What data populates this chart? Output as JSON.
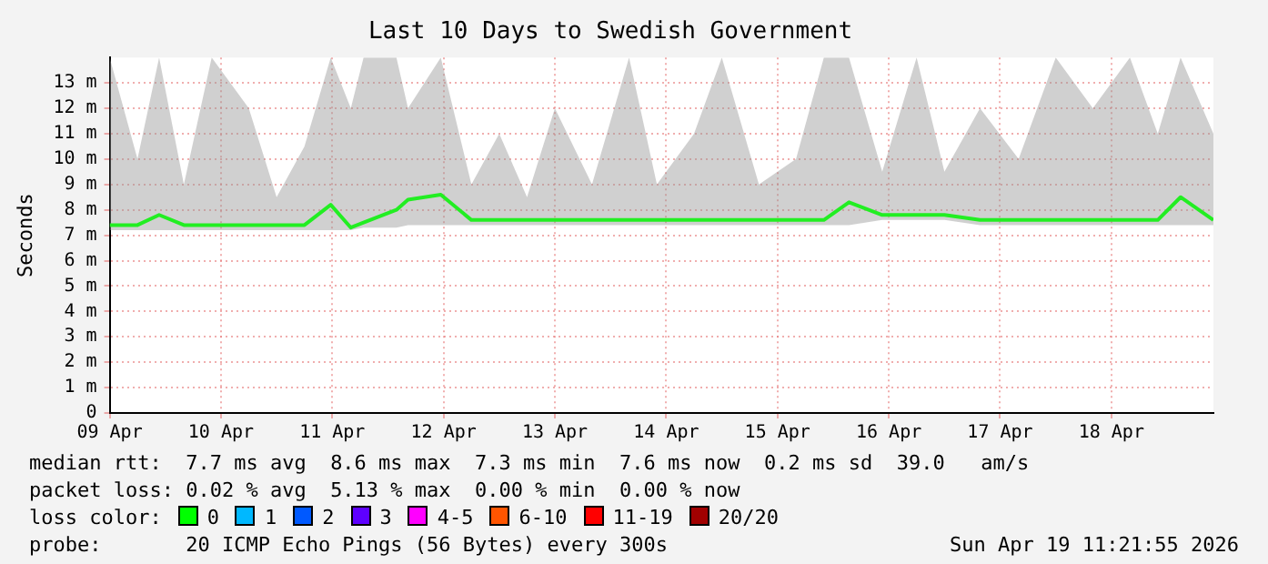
{
  "chart_data": {
    "type": "line",
    "title": "Last 10 Days to Swedish Government",
    "ylabel": "Seconds",
    "x": [
      "2026-04-09T00:00",
      "2026-04-09T06:00",
      "2026-04-09T10:40",
      "2026-04-09T16:00",
      "2026-04-09T22:00",
      "2026-04-10T06:00",
      "2026-04-10T12:00",
      "2026-04-10T18:00",
      "2026-04-10T23:40",
      "2026-04-11T04:00",
      "2026-04-11T06:45",
      "2026-04-11T13:50",
      "2026-04-11T16:20",
      "2026-04-11T23:24",
      "2026-04-12T06:00",
      "2026-04-12T12:00",
      "2026-04-12T18:00",
      "2026-04-13T00:00",
      "2026-04-13T08:00",
      "2026-04-13T16:00",
      "2026-04-13T22:00",
      "2026-04-14T06:00",
      "2026-04-14T12:00",
      "2026-04-14T20:00",
      "2026-04-15T04:00",
      "2026-04-15T10:00",
      "2026-04-15T15:25",
      "2026-04-15T22:35",
      "2026-04-16T06:00",
      "2026-04-16T12:00",
      "2026-04-16T19:40",
      "2026-04-17T04:00",
      "2026-04-17T12:00",
      "2026-04-17T20:00",
      "2026-04-18T04:00",
      "2026-04-18T10:00",
      "2026-04-18T14:55",
      "2026-04-18T22:00"
    ],
    "series": [
      {
        "color": "#22ee22",
        "values": [
          7.4,
          7.4,
          7.8,
          7.4,
          7.4,
          7.4,
          7.4,
          7.4,
          8.2,
          7.3,
          7.5,
          8.0,
          8.4,
          8.6,
          7.6,
          7.6,
          7.6,
          7.6,
          7.6,
          7.6,
          7.6,
          7.6,
          7.6,
          7.6,
          7.6,
          7.6,
          8.3,
          7.8,
          7.8,
          7.8,
          7.6,
          7.6,
          7.6,
          7.6,
          7.6,
          7.6,
          8.5,
          7.6
        ],
        "lower": [
          7.2,
          7.2,
          7.2,
          7.2,
          7.2,
          7.2,
          7.2,
          7.2,
          7.2,
          7.2,
          7.3,
          7.3,
          7.4,
          7.4,
          7.4,
          7.4,
          7.4,
          7.4,
          7.4,
          7.4,
          7.4,
          7.4,
          7.4,
          7.4,
          7.4,
          7.4,
          7.4,
          7.6,
          7.6,
          7.6,
          7.4,
          7.4,
          7.4,
          7.4,
          7.4,
          7.4,
          7.4,
          7.4
        ],
        "upper": [
          14,
          10,
          14,
          9,
          14,
          12,
          8.5,
          10.5,
          14,
          12,
          14,
          14,
          12,
          14,
          9,
          11,
          8.5,
          12,
          9,
          14,
          9,
          11,
          14,
          9,
          10,
          14,
          14,
          9.5,
          14,
          9.5,
          12,
          10,
          14,
          12,
          14,
          11,
          14,
          11
        ]
      }
    ],
    "xlim": [
      "2026-04-09T00:00",
      "2026-04-18T22:00"
    ],
    "xticks": [
      {
        "value": "2026-04-09",
        "label": "09 Apr"
      },
      {
        "value": "2026-04-10",
        "label": "10 Apr"
      },
      {
        "value": "2026-04-11",
        "label": "11 Apr"
      },
      {
        "value": "2026-04-12",
        "label": "12 Apr"
      },
      {
        "value": "2026-04-13",
        "label": "13 Apr"
      },
      {
        "value": "2026-04-14",
        "label": "14 Apr"
      },
      {
        "value": "2026-04-15",
        "label": "15 Apr"
      },
      {
        "value": "2026-04-16",
        "label": "16 Apr"
      },
      {
        "value": "2026-04-17",
        "label": "17 Apr"
      },
      {
        "value": "2026-04-18",
        "label": "18 Apr"
      }
    ],
    "ylim": [
      0,
      14
    ],
    "yticks": [
      0,
      {
        "value": 1,
        "label": "1 m"
      },
      {
        "value": 2,
        "label": "2 m"
      },
      {
        "value": 3,
        "label": "3 m"
      },
      {
        "value": 4,
        "label": "4 m"
      },
      {
        "value": 5,
        "label": "5 m"
      },
      {
        "value": 6,
        "label": "6 m"
      },
      {
        "value": 7,
        "label": "7 m"
      },
      {
        "value": 8,
        "label": "8 m"
      },
      {
        "value": 9,
        "label": "9 m"
      },
      {
        "value": 10,
        "label": "10 m"
      },
      {
        "value": 11,
        "label": "11 m"
      },
      {
        "value": 12,
        "label": "12 m"
      },
      {
        "value": 13,
        "label": "13 m"
      }
    ],
    "grid": true,
    "legend": false,
    "marker": "none",
    "line_style": "solid",
    "annotations": [
      "median rtt:  7.7 ms avg  8.6 ms max  7.3 ms min  7.6 ms now  0.2 ms sd  39.0   am/s",
      "packet loss: 0.02 % avg  5.13 % max  0.00 % min  0.00 % now",
      "loss color:",
      "0",
      "1",
      "2",
      "3",
      "4-5",
      "6-10",
      "11-19",
      "20/20",
      "probe:       20 ICMP Echo Pings (56 Bytes) every 300s",
      "Sun Apr 19 11:21:55 2026"
    ]
  }
}
